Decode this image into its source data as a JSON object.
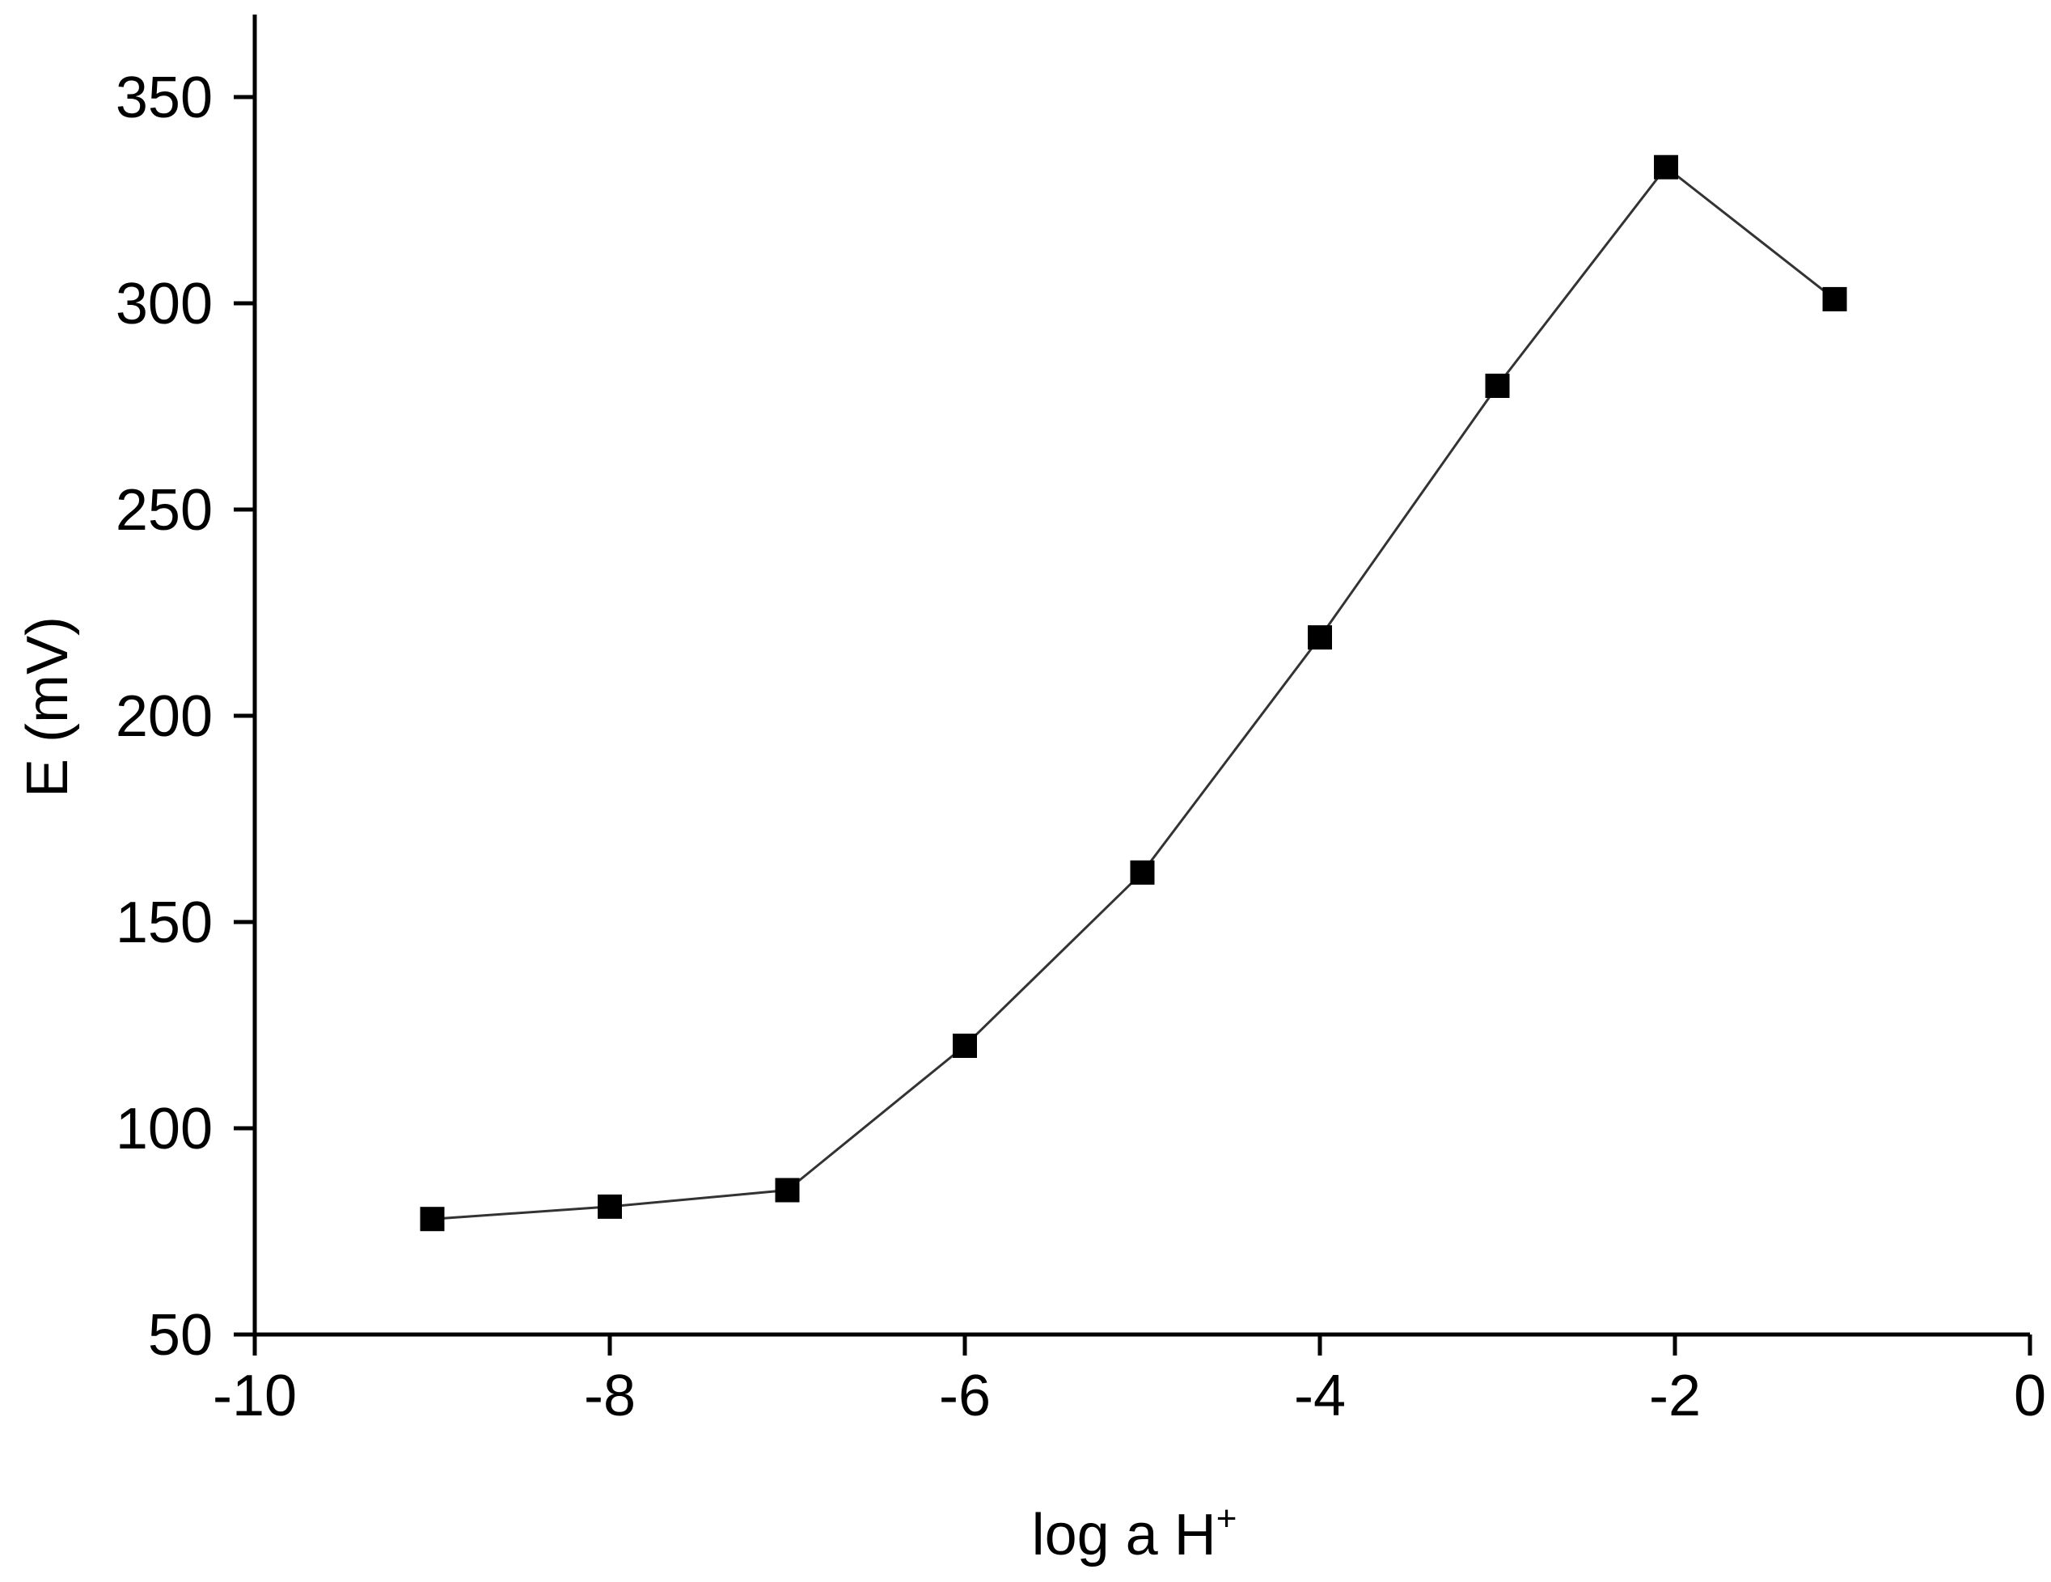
{
  "chart_data": {
    "type": "line",
    "title": "",
    "xlabel": "log a H",
    "xlabel_superscript": "+",
    "ylabel": "E (mV)",
    "xlim": [
      -10,
      0
    ],
    "ylim": [
      50,
      370
    ],
    "xticks": [
      -10,
      -8,
      -6,
      -4,
      -2,
      0
    ],
    "yticks": [
      50,
      100,
      150,
      200,
      250,
      300,
      350
    ],
    "grid": false,
    "legend": "none",
    "marker": "square",
    "colors": {
      "line": "#333333",
      "marker": "#000000",
      "axis": "#000000"
    },
    "series": [
      {
        "x": [
          -9,
          -8,
          -7,
          -6,
          -5,
          -4,
          -3,
          -2.05,
          -1.1
        ],
        "y": [
          78,
          81,
          85,
          120,
          162,
          219,
          280,
          333,
          301
        ]
      }
    ]
  }
}
